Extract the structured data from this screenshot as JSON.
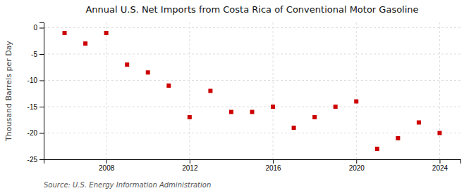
{
  "chart_data": {
    "type": "scatter",
    "title": "Annual U.S. Net Imports from Costa Rica of Conventional Motor Gasoline",
    "ylabel": "Thousand Barrels per Day",
    "annotations": [
      "Source: U.S. Energy Information Administration"
    ],
    "x": [
      2006,
      2007,
      2008,
      2009,
      2010,
      2011,
      2012,
      2013,
      2014,
      2015,
      2016,
      2017,
      2018,
      2019,
      2020,
      2021,
      2022,
      2023,
      2024
    ],
    "values": [
      -1.0,
      -3.0,
      -1.0,
      -7.0,
      -8.5,
      -11.0,
      -17.0,
      -12.0,
      -16.0,
      -16.0,
      -15.0,
      -19.0,
      -17.0,
      -15.0,
      -14.0,
      -23.0,
      -21.0,
      -18.0,
      -20.0
    ],
    "color": "#cc0000",
    "marker": "square",
    "xlim": [
      2005.0,
      2025.0
    ],
    "ylim": [
      -25,
      1
    ],
    "xticks": [
      2008,
      2012,
      2016,
      2020,
      2024
    ],
    "yticks": [
      0,
      -5,
      -10,
      -15,
      -20,
      -25
    ],
    "grid": true
  }
}
